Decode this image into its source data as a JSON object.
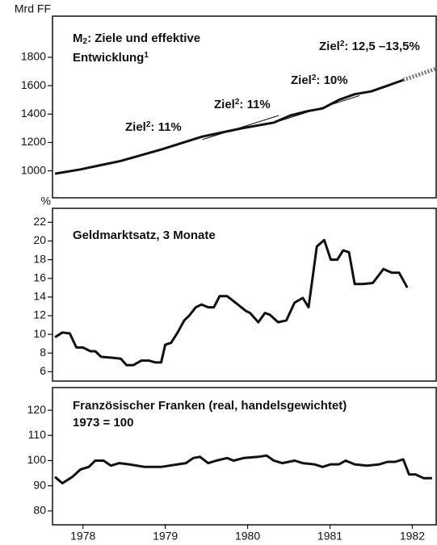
{
  "chart_data": [
    {
      "type": "line",
      "ylabel": "Mrd FF",
      "ylim": [
        810,
        2090
      ],
      "yticks": [
        1000,
        1200,
        1400,
        1600,
        1800
      ],
      "xlim": [
        1978.13,
        1982.79
      ],
      "annotations": [
        [
          {
            "text": "M"
          },
          {
            "text": "2",
            "style": "sub"
          },
          {
            "text": ": Ziele und effektive"
          }
        ],
        [
          {
            "text": "Entwicklung"
          },
          {
            "text": "1",
            "style": "sup"
          }
        ],
        [
          {
            "text": "Ziel"
          },
          {
            "text": "2",
            "style": "sup"
          },
          {
            "text": ": 11%"
          }
        ],
        [
          {
            "text": "Ziel"
          },
          {
            "text": "2",
            "style": "sup"
          },
          {
            "text": ": 11%"
          }
        ],
        [
          {
            "text": "Ziel"
          },
          {
            "text": "2",
            "style": "sup"
          },
          {
            "text": ": 10%"
          }
        ],
        [
          {
            "text": "Ziel"
          },
          {
            "text": "2",
            "style": "sup"
          },
          {
            "text": ": 12,5 –13,5%"
          }
        ]
      ],
      "series": [
        {
          "color": "#111",
          "width": 3,
          "x": [
            1978.16,
            1978.47,
            1978.96,
            1979.45,
            1979.94,
            1980.43,
            1980.82,
            1981.02,
            1981.22,
            1981.41,
            1981.61,
            1981.8,
            1982.0,
            1982.2,
            1982.39
          ],
          "values": [
            980,
            1010,
            1070,
            1150,
            1240,
            1300,
            1340,
            1390,
            1420,
            1440,
            1500,
            1540,
            1560,
            1600,
            1640
          ]
        },
        {
          "color": "#777",
          "width": 5,
          "dashed": true,
          "x": [
            1982.39,
            1982.79
          ],
          "values": [
            1640,
            1720
          ]
        },
        {
          "color": "#111",
          "width": 1,
          "x": [
            1979.95,
            1980.88
          ],
          "values": [
            1220,
            1390
          ]
        },
        {
          "color": "#111",
          "width": 1,
          "x": [
            1980.88,
            1981.86
          ],
          "values": [
            1350,
            1530
          ]
        }
      ]
    },
    {
      "type": "line",
      "ylabel": "%",
      "ylim": [
        5,
        23.5
      ],
      "yticks": [
        6,
        8,
        10,
        12,
        14,
        16,
        18,
        20,
        22
      ],
      "xlim": [
        1978.13,
        1982.79
      ],
      "annotations": [
        [
          {
            "text": "Geldmarktsatz, 3 Monate"
          }
        ]
      ],
      "series": [
        {
          "color": "#111",
          "width": 3,
          "x": [
            1978.16,
            1978.25,
            1978.34,
            1978.42,
            1978.5,
            1978.59,
            1978.65,
            1978.72,
            1978.86,
            1978.96,
            1979.03,
            1979.11,
            1979.21,
            1979.3,
            1979.38,
            1979.45,
            1979.5,
            1979.57,
            1979.65,
            1979.73,
            1979.79,
            1979.87,
            1979.94,
            1980.02,
            1980.09,
            1980.16,
            1980.25,
            1980.38,
            1980.48,
            1980.53,
            1980.63,
            1980.71,
            1980.77,
            1980.87,
            1980.97,
            1981.07,
            1981.17,
            1981.24,
            1981.34,
            1981.43,
            1981.51,
            1981.59,
            1981.66,
            1981.73,
            1981.8,
            1981.9,
            1982.02,
            1982.15,
            1982.25,
            1982.34,
            1982.44
          ],
          "values": [
            9.7,
            10.2,
            10.1,
            8.6,
            8.6,
            8.2,
            8.2,
            7.6,
            7.5,
            7.4,
            6.7,
            6.7,
            7.2,
            7.2,
            7.0,
            7.0,
            8.9,
            9.1,
            10.2,
            11.5,
            12.0,
            12.9,
            13.2,
            12.9,
            12.9,
            14.1,
            14.1,
            13.2,
            12.5,
            12.3,
            11.3,
            12.3,
            12.1,
            11.3,
            11.5,
            13.4,
            13.9,
            12.9,
            19.4,
            20.1,
            18.0,
            18.0,
            19.0,
            18.8,
            15.4,
            15.4,
            15.5,
            17.0,
            16.6,
            16.6,
            15.0
          ]
        }
      ]
    },
    {
      "type": "line",
      "ylim": [
        74.5,
        129
      ],
      "yticks": [
        80,
        90,
        100,
        110,
        120
      ],
      "xlim": [
        1978.13,
        1982.79
      ],
      "xticks": [
        {
          "value": 1978.5,
          "label": "1978"
        },
        {
          "value": 1979.5,
          "label": "1979"
        },
        {
          "value": 1980.5,
          "label": "1980"
        },
        {
          "value": 1981.5,
          "label": "1981"
        },
        {
          "value": 1982.5,
          "label": "1982"
        }
      ],
      "annotations": [
        [
          {
            "text": "Französischer Franken (real, handelsgewichtet)"
          }
        ],
        [
          {
            "text": "1973 = 100"
          }
        ]
      ],
      "series": [
        {
          "color": "#111",
          "width": 3,
          "x": [
            1978.16,
            1978.25,
            1978.37,
            1978.47,
            1978.57,
            1978.65,
            1978.75,
            1978.84,
            1978.94,
            1979.06,
            1979.25,
            1979.45,
            1979.65,
            1979.75,
            1979.84,
            1979.92,
            1980.02,
            1980.12,
            1980.25,
            1980.33,
            1980.45,
            1980.63,
            1980.73,
            1980.82,
            1980.92,
            1981.07,
            1981.17,
            1981.31,
            1981.41,
            1981.51,
            1981.61,
            1981.69,
            1981.8,
            1981.95,
            1982.1,
            1982.2,
            1982.29,
            1982.39,
            1982.46,
            1982.54,
            1982.64,
            1982.74
          ],
          "values": [
            93.5,
            91,
            93.5,
            96.5,
            97.5,
            100,
            100,
            98,
            99,
            98.5,
            97.5,
            97.5,
            98.5,
            99,
            101,
            101.5,
            99,
            100,
            101,
            100,
            101,
            101.5,
            102,
            100,
            99,
            100,
            99,
            98.5,
            97.5,
            98.5,
            98.5,
            100,
            98.5,
            98,
            98.5,
            99.5,
            99.5,
            100.5,
            94.5,
            94.5,
            93,
            93
          ]
        }
      ]
    }
  ]
}
